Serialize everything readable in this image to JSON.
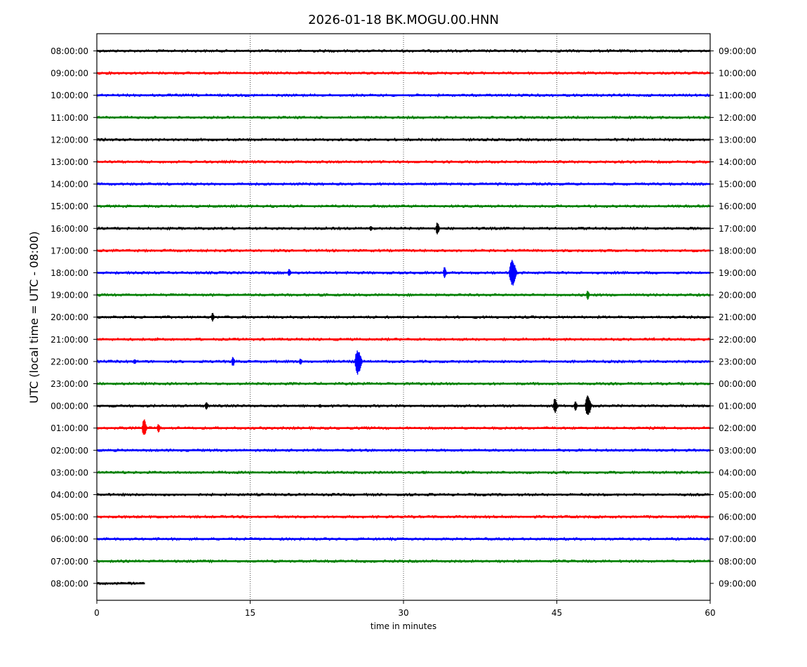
{
  "chart_data": {
    "type": "line",
    "title": "2026-01-18 BK.MOGU.00.HNN",
    "xlabel": "time in minutes",
    "ylabel": "UTC (local time = UTC - 08:00)",
    "xlim": [
      0,
      60
    ],
    "x_ticks": [
      "0",
      "15",
      "30",
      "45",
      "60"
    ],
    "x_tick_values": [
      0,
      15,
      30,
      45,
      60
    ],
    "grid": "vertical dotted lines at 15, 30, 45",
    "colors": [
      "#000000",
      "#ff0000",
      "#0000ff",
      "#008000"
    ],
    "series": [
      {
        "left": "08:00:00",
        "right": "09:00:00",
        "color": "#000000",
        "end_minute": 60,
        "events": []
      },
      {
        "left": "09:00:00",
        "right": "10:00:00",
        "color": "#ff0000",
        "end_minute": 60,
        "events": []
      },
      {
        "left": "10:00:00",
        "right": "11:00:00",
        "color": "#0000ff",
        "end_minute": 60,
        "events": []
      },
      {
        "left": "11:00:00",
        "right": "12:00:00",
        "color": "#008000",
        "end_minute": 60,
        "events": []
      },
      {
        "left": "12:00:00",
        "right": "13:00:00",
        "color": "#000000",
        "end_minute": 60,
        "events": []
      },
      {
        "left": "13:00:00",
        "right": "14:00:00",
        "color": "#ff0000",
        "end_minute": 60,
        "events": []
      },
      {
        "left": "14:00:00",
        "right": "15:00:00",
        "color": "#0000ff",
        "end_minute": 60,
        "events": []
      },
      {
        "left": "15:00:00",
        "right": "16:00:00",
        "color": "#008000",
        "end_minute": 60,
        "events": []
      },
      {
        "left": "16:00:00",
        "right": "17:00:00",
        "color": "#000000",
        "end_minute": 60,
        "events": [
          {
            "minute": 26.8,
            "amplitude": 6
          },
          {
            "minute": 33.3,
            "amplitude": 16
          }
        ]
      },
      {
        "left": "17:00:00",
        "right": "18:00:00",
        "color": "#ff0000",
        "end_minute": 60,
        "events": []
      },
      {
        "left": "18:00:00",
        "right": "19:00:00",
        "color": "#0000ff",
        "end_minute": 60,
        "events": [
          {
            "minute": 18.8,
            "amplitude": 10
          },
          {
            "minute": 34.0,
            "amplitude": 14
          },
          {
            "minute": 40.6,
            "amplitude": 34
          }
        ]
      },
      {
        "left": "19:00:00",
        "right": "20:00:00",
        "color": "#008000",
        "end_minute": 60,
        "events": [
          {
            "minute": 48.0,
            "amplitude": 12
          }
        ]
      },
      {
        "left": "20:00:00",
        "right": "21:00:00",
        "color": "#000000",
        "end_minute": 60,
        "events": [
          {
            "minute": 11.3,
            "amplitude": 11
          }
        ]
      },
      {
        "left": "21:00:00",
        "right": "22:00:00",
        "color": "#ff0000",
        "end_minute": 60,
        "events": [
          {
            "minute": 5.8,
            "amplitude": 3
          },
          {
            "minute": 54.4,
            "amplitude": 3
          }
        ]
      },
      {
        "left": "22:00:00",
        "right": "23:00:00",
        "color": "#0000ff",
        "end_minute": 60,
        "events": [
          {
            "minute": 3.7,
            "amplitude": 7
          },
          {
            "minute": 13.3,
            "amplitude": 13
          },
          {
            "minute": 19.9,
            "amplitude": 8
          },
          {
            "minute": 25.5,
            "amplitude": 32
          }
        ]
      },
      {
        "left": "23:00:00",
        "right": "00:00:00",
        "color": "#008000",
        "end_minute": 60,
        "events": []
      },
      {
        "left": "00:00:00",
        "right": "01:00:00",
        "color": "#000000",
        "end_minute": 60,
        "events": [
          {
            "minute": 10.7,
            "amplitude": 11
          },
          {
            "minute": 21.8,
            "amplitude": 5
          },
          {
            "minute": 44.8,
            "amplitude": 19
          },
          {
            "minute": 46.8,
            "amplitude": 12
          },
          {
            "minute": 48.0,
            "amplitude": 28
          }
        ]
      },
      {
        "left": "01:00:00",
        "right": "02:00:00",
        "color": "#ff0000",
        "end_minute": 60,
        "events": [
          {
            "minute": 4.6,
            "amplitude": 22
          },
          {
            "minute": 6.0,
            "amplitude": 12
          }
        ]
      },
      {
        "left": "02:00:00",
        "right": "03:00:00",
        "color": "#0000ff",
        "end_minute": 60,
        "events": []
      },
      {
        "left": "03:00:00",
        "right": "04:00:00",
        "color": "#008000",
        "end_minute": 60,
        "events": [
          {
            "minute": 32.0,
            "amplitude": 4
          }
        ]
      },
      {
        "left": "04:00:00",
        "right": "05:00:00",
        "color": "#000000",
        "end_minute": 60,
        "events": []
      },
      {
        "left": "05:00:00",
        "right": "06:00:00",
        "color": "#ff0000",
        "end_minute": 60,
        "events": []
      },
      {
        "left": "06:00:00",
        "right": "07:00:00",
        "color": "#0000ff",
        "end_minute": 60,
        "events": []
      },
      {
        "left": "07:00:00",
        "right": "08:00:00",
        "color": "#008000",
        "end_minute": 60,
        "events": []
      },
      {
        "left": "08:00:00",
        "right": "09:00:00",
        "color": "#000000",
        "end_minute": 4.7,
        "events": []
      }
    ]
  }
}
